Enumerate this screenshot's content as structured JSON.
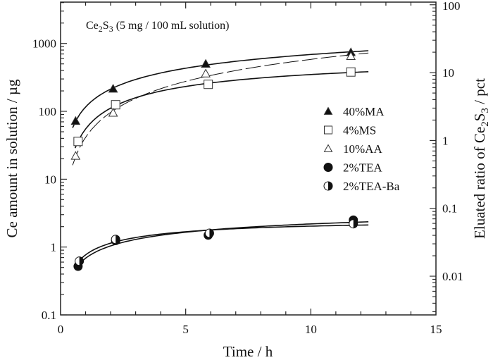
{
  "chart_data": {
    "type": "scatter",
    "annotation": {
      "main": "Ce",
      "sub1": "2",
      "mid": "S",
      "sub2": "3",
      "rest": " (5 mg / 100 mL solution)"
    },
    "xlabel": "Time  /  h",
    "ylabel": "Ce amount in solution / µg",
    "ylabel_right": {
      "pre": "Eluated ratio of Ce",
      "sub1": "2",
      "mid": "S",
      "sub2": "3",
      "post": "  / pct"
    },
    "xlim": [
      0,
      15
    ],
    "ylim": [
      0.1,
      4070
    ],
    "yscale": "log",
    "x_ticks": [
      {
        "v": 0,
        "label": "0"
      },
      {
        "v": 5,
        "label": "5"
      },
      {
        "v": 10,
        "label": "10"
      },
      {
        "v": 15,
        "label": "15"
      }
    ],
    "y_ticks": [
      {
        "v": 0.1,
        "label": "0.1"
      },
      {
        "v": 1,
        "label": "1"
      },
      {
        "v": 10,
        "label": "10"
      },
      {
        "v": 100,
        "label": "100"
      },
      {
        "v": 1000,
        "label": "1000"
      }
    ],
    "y_right_ticks": [
      {
        "v": 0.01,
        "label": "0.01"
      },
      {
        "v": 0.1,
        "label": "0.1"
      },
      {
        "v": 1,
        "label": "1"
      },
      {
        "v": 10,
        "label": "10"
      },
      {
        "v": 100,
        "label": "100"
      }
    ],
    "right_axis_factor_pct_per_ug": 0.02688,
    "legend_position": "center-right",
    "series": [
      {
        "name": "40%MA",
        "marker": "triangle-filled",
        "line": "solid",
        "x": [
          0.6,
          2.1,
          5.8,
          11.6
        ],
        "y": [
          72,
          215,
          500,
          740
        ]
      },
      {
        "name": "4%MS",
        "marker": "square-open",
        "line": "solid",
        "x": [
          0.7,
          2.2,
          5.9,
          11.6
        ],
        "y": [
          36,
          125,
          250,
          380
        ]
      },
      {
        "name": "10%AA",
        "marker": "triangle-open",
        "line": "dashed",
        "x": [
          0.6,
          2.1,
          5.8,
          11.6
        ],
        "y": [
          22,
          95,
          360,
          650
        ]
      },
      {
        "name": "2%TEA",
        "marker": "circle-filled",
        "line": "solid",
        "x": [
          0.7,
          2.2,
          5.9,
          11.7
        ],
        "y": [
          0.52,
          1.25,
          1.5,
          2.5
        ]
      },
      {
        "name": "2%TEA-Ba",
        "marker": "circle-half",
        "line": "solid",
        "x": [
          0.75,
          2.2,
          5.95,
          11.7
        ],
        "y": [
          0.62,
          1.3,
          1.6,
          2.2
        ]
      }
    ]
  }
}
